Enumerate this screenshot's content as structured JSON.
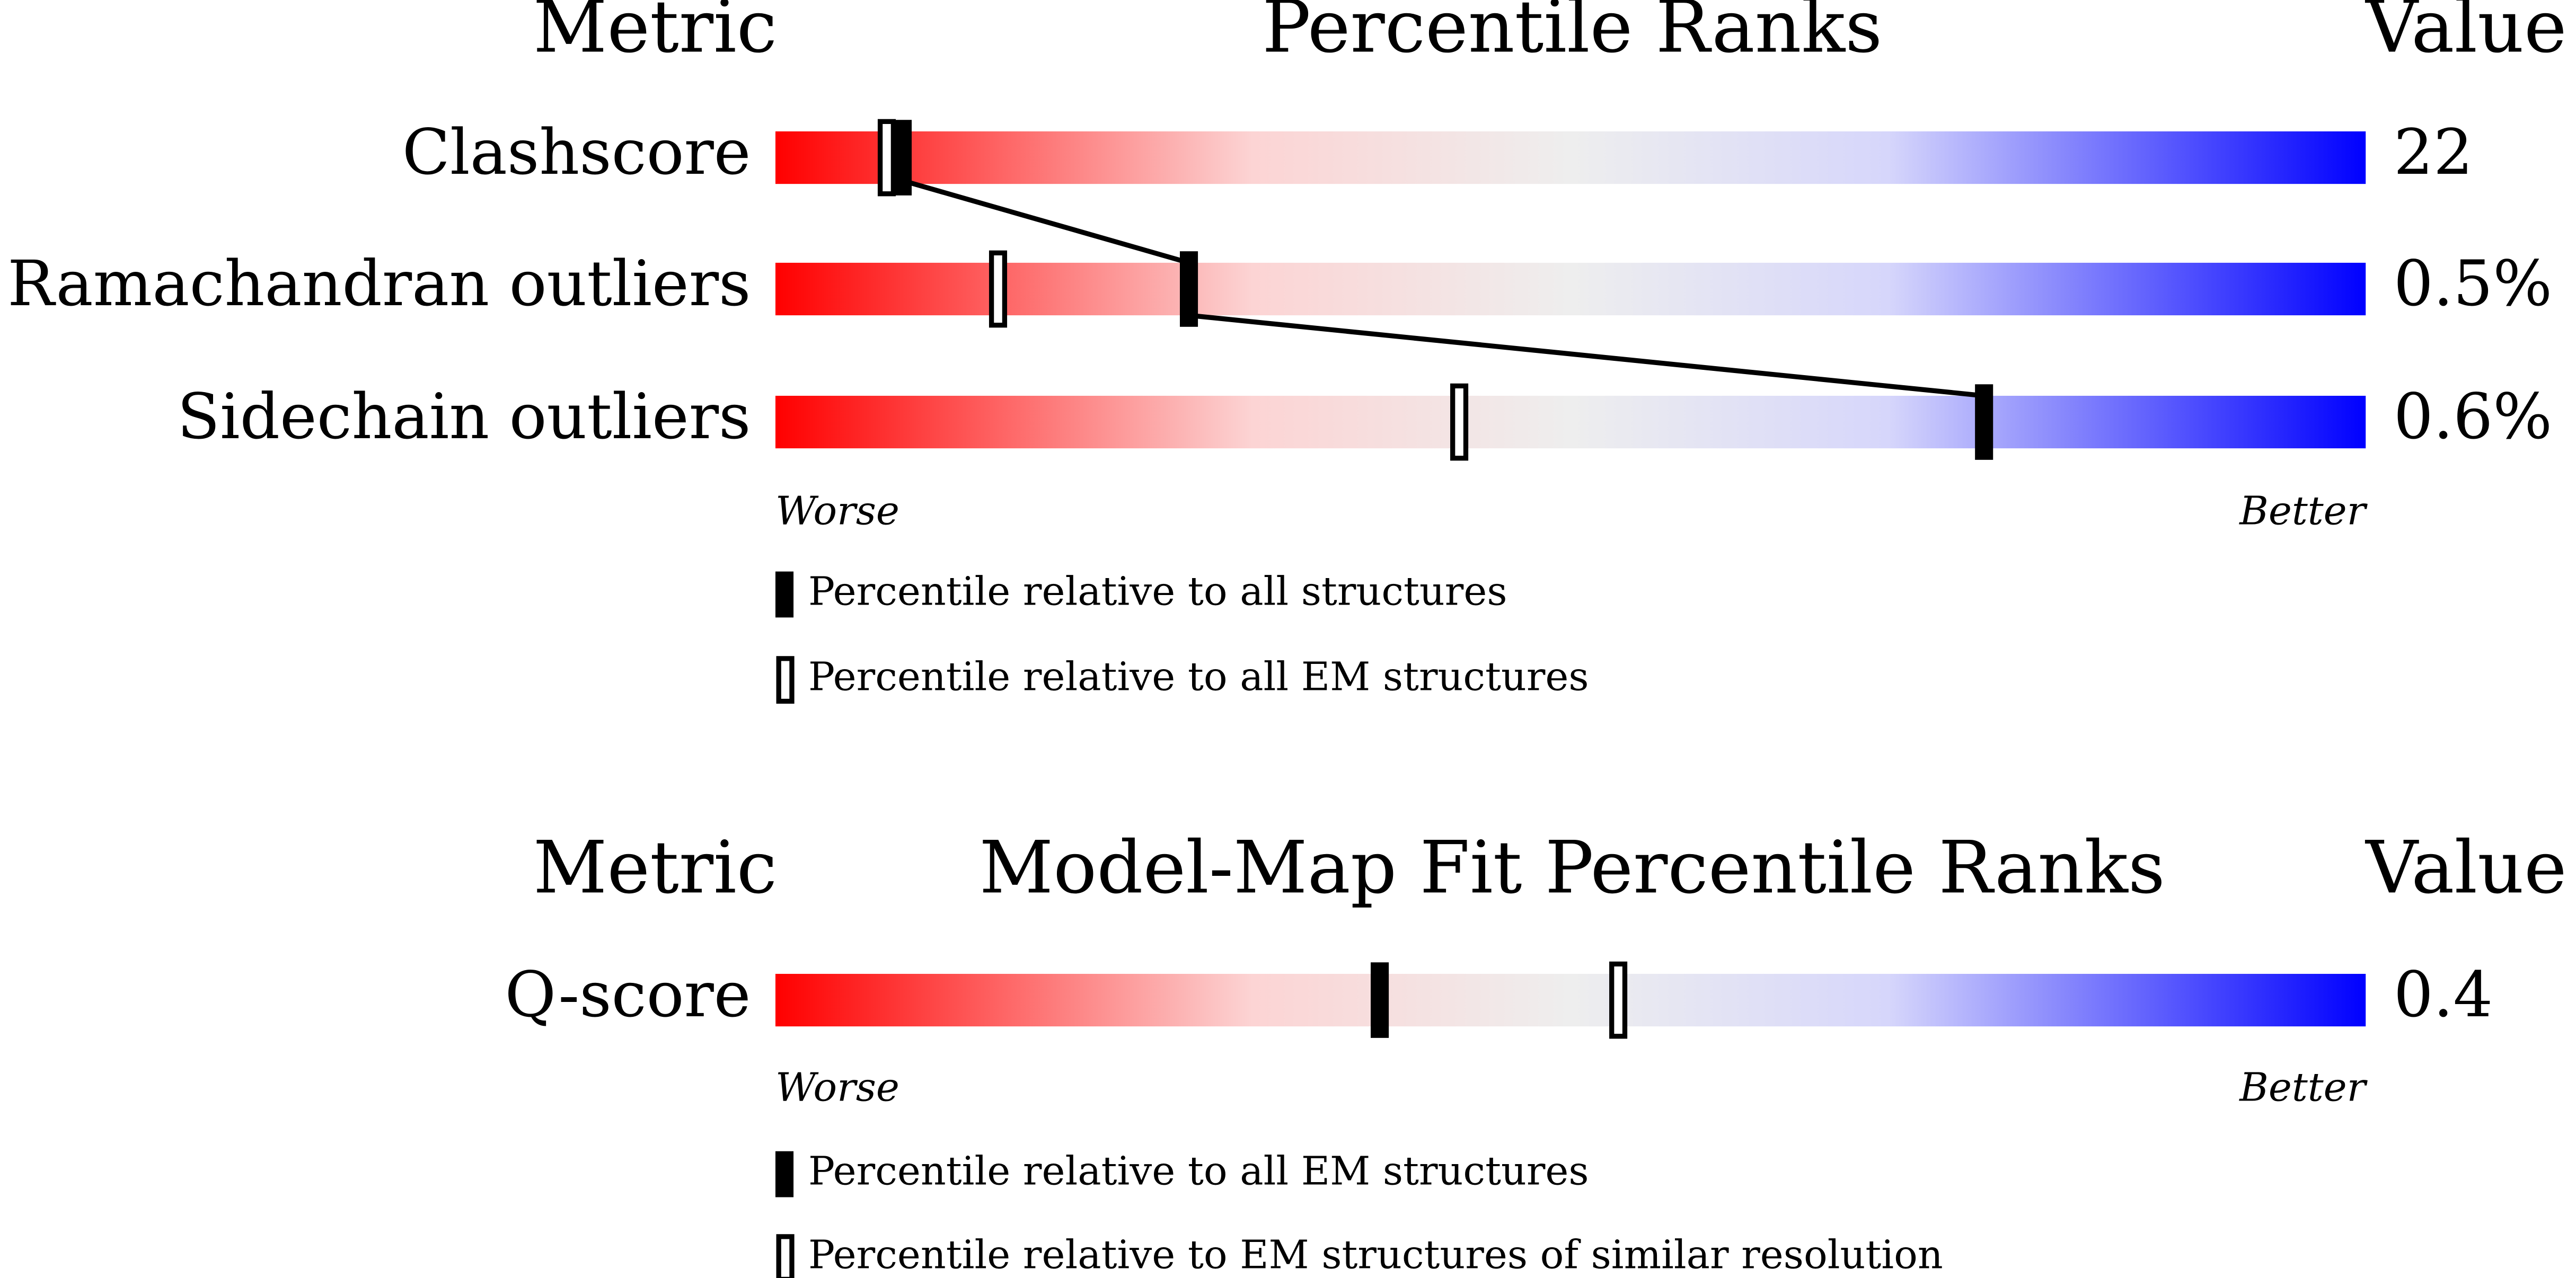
{
  "panels": [
    {
      "header": {
        "metric": "Metric",
        "title": "Percentile Ranks",
        "value": "Value"
      },
      "xlim": [
        0,
        100
      ],
      "connect": true,
      "rows": [
        {
          "metric": "Clashscore",
          "value": "22",
          "percentile_filled": 8,
          "percentile_open": 7
        },
        {
          "metric": "Ramachandran outliers",
          "value": "0.5%",
          "percentile_filled": 26,
          "percentile_open": 14
        },
        {
          "metric": "Sidechain outliers",
          "value": "0.6%",
          "percentile_filled": 76,
          "percentile_open": 43
        }
      ],
      "scale": {
        "worse": "Worse",
        "better": "Better"
      },
      "legend": {
        "filled": "Percentile relative to all structures",
        "open": "Percentile relative to all EM structures"
      }
    },
    {
      "header": {
        "metric": "Metric",
        "title": "Model-Map Fit Percentile Ranks",
        "value": "Value"
      },
      "xlim": [
        0,
        100
      ],
      "connect": false,
      "rows": [
        {
          "metric": "Q-score",
          "value": "0.4",
          "percentile_filled": 38,
          "percentile_open": 53
        }
      ],
      "scale": {
        "worse": "Worse",
        "better": "Better"
      },
      "legend": {
        "filled": "Percentile relative to all EM structures",
        "open": "Percentile relative to EM structures of similar resolution"
      }
    }
  ]
}
